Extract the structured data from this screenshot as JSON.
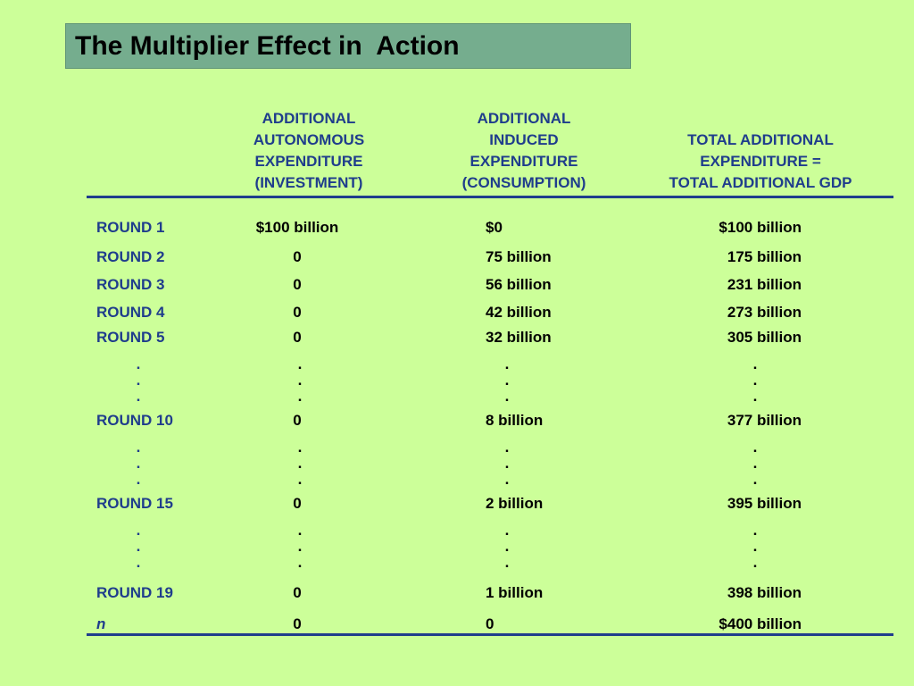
{
  "title": "The Multiplier Effect in  Action",
  "headers": {
    "col1": [
      "ADDITIONAL",
      "AUTONOMOUS",
      "EXPENDITURE",
      "(INVESTMENT)"
    ],
    "col2": [
      "ADDITIONAL",
      "INDUCED",
      "EXPENDITURE",
      "(CONSUMPTION)"
    ],
    "col3": [
      "TOTAL ADDITIONAL",
      "EXPENDITURE =",
      "TOTAL ADDITIONAL GDP"
    ]
  },
  "rows": [
    {
      "label": "ROUND 1",
      "autonomous": "$100 billion",
      "induced": "$0",
      "total": "$100 billion"
    },
    {
      "label": "ROUND 2",
      "autonomous": "0",
      "induced": "75 billion",
      "total": "175 billion"
    },
    {
      "label": "ROUND 3",
      "autonomous": "0",
      "induced": "56 billion",
      "total": "231 billion"
    },
    {
      "label": "ROUND 4",
      "autonomous": "0",
      "induced": "42 billion",
      "total": "273 billion"
    },
    {
      "label": "ROUND 5",
      "autonomous": "0",
      "induced": "32 billion",
      "total": "305 billion"
    },
    {
      "label": "ROUND 10",
      "autonomous": "0",
      "induced": "8 billion",
      "total": "377 billion"
    },
    {
      "label": "ROUND 15",
      "autonomous": "0",
      "induced": "2 billion",
      "total": "395 billion"
    },
    {
      "label": "ROUND 19",
      "autonomous": "0",
      "induced": "1 billion",
      "total": "398 billion"
    },
    {
      "label": "n",
      "autonomous": "0",
      "induced": "0",
      "total": "$400 billion"
    }
  ],
  "ellipsis": "."
}
